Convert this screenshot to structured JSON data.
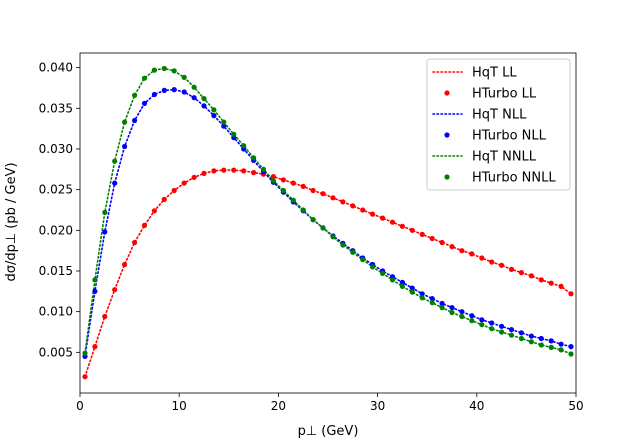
{
  "chart_data": {
    "type": "scatter",
    "xlabel": "p⊥ (GeV)",
    "ylabel": "dσ/dp⊥ (pb / GeV)",
    "xlim": [
      0,
      50
    ],
    "ylim": [
      0.0,
      0.0418
    ],
    "xticks": [
      0,
      10,
      20,
      30,
      40,
      50
    ],
    "xtick_labels": [
      "0",
      "10",
      "20",
      "30",
      "40",
      "50"
    ],
    "yticks": [
      0.005,
      0.01,
      0.015,
      0.02,
      0.025,
      0.03,
      0.035,
      0.04
    ],
    "ytick_labels": [
      "0.005",
      "0.010",
      "0.015",
      "0.020",
      "0.025",
      "0.030",
      "0.035",
      "0.040"
    ],
    "grid": false,
    "legend_position": "top-right",
    "series": [
      {
        "name": "HqT LL",
        "style": "dotted",
        "color": "#ff0000",
        "model": "LL"
      },
      {
        "name": "HTurbo LL",
        "style": "markers",
        "color": "#ff0000",
        "model": "LL"
      },
      {
        "name": "HqT NLL",
        "style": "dotted",
        "color": "#0000ff",
        "model": "NLL"
      },
      {
        "name": "HTurbo NLL",
        "style": "markers",
        "color": "#0000ff",
        "model": "NLL"
      },
      {
        "name": "HqT NNLL",
        "style": "dotted",
        "color": "#008000",
        "model": "NNLL"
      },
      {
        "name": "HTurbo NNLL",
        "style": "markers",
        "color": "#008000",
        "model": "NNLL"
      }
    ],
    "curves": {
      "LL": {
        "x": [
          0.5,
          1.5,
          2.5,
          3.5,
          4.5,
          5.5,
          6.5,
          7.5,
          8.5,
          9.5,
          10.5,
          11.5,
          12.5,
          13.5,
          14.5,
          15.5,
          16.5,
          17.5,
          18.5,
          19.5,
          20.5,
          21.5,
          22.5,
          23.5,
          24.5,
          25.5,
          26.5,
          27.5,
          28.5,
          29.5,
          30.5,
          31.5,
          32.5,
          33.5,
          34.5,
          35.5,
          36.5,
          37.5,
          38.5,
          39.5,
          40.5,
          41.5,
          42.5,
          43.5,
          44.5,
          45.5,
          46.5,
          47.5,
          48.5,
          49.5
        ],
        "y": [
          0.002,
          0.0057,
          0.0094,
          0.0127,
          0.0158,
          0.0185,
          0.0206,
          0.0224,
          0.0238,
          0.0249,
          0.0258,
          0.0265,
          0.027,
          0.0273,
          0.0274,
          0.0274,
          0.0273,
          0.0271,
          0.0269,
          0.0266,
          0.0262,
          0.0258,
          0.0254,
          0.0249,
          0.0245,
          0.024,
          0.0235,
          0.023,
          0.0225,
          0.022,
          0.0215,
          0.021,
          0.0205,
          0.02,
          0.0195,
          0.019,
          0.0185,
          0.018,
          0.0175,
          0.0171,
          0.0166,
          0.0161,
          0.0157,
          0.0152,
          0.0148,
          0.0144,
          0.0139,
          0.0135,
          0.0131,
          0.0122
        ]
      },
      "NLL": {
        "x": [
          0.5,
          1.5,
          2.5,
          3.5,
          4.5,
          5.5,
          6.5,
          7.5,
          8.5,
          9.5,
          10.5,
          11.5,
          12.5,
          13.5,
          14.5,
          15.5,
          16.5,
          17.5,
          18.5,
          19.5,
          20.5,
          21.5,
          22.5,
          23.5,
          24.5,
          25.5,
          26.5,
          27.5,
          28.5,
          29.5,
          30.5,
          31.5,
          32.5,
          33.5,
          34.5,
          35.5,
          36.5,
          37.5,
          38.5,
          39.5,
          40.5,
          41.5,
          42.5,
          43.5,
          44.5,
          45.5,
          46.5,
          47.5,
          48.5,
          49.5
        ],
        "y": [
          0.0045,
          0.0125,
          0.0198,
          0.0258,
          0.0303,
          0.0335,
          0.0356,
          0.0367,
          0.0372,
          0.0373,
          0.037,
          0.0363,
          0.0353,
          0.0341,
          0.0328,
          0.0314,
          0.03,
          0.0286,
          0.0272,
          0.0259,
          0.0247,
          0.0235,
          0.0224,
          0.0213,
          0.0203,
          0.0193,
          0.0184,
          0.0175,
          0.0166,
          0.0158,
          0.015,
          0.0143,
          0.0136,
          0.0129,
          0.0122,
          0.0116,
          0.011,
          0.0105,
          0.01,
          0.0095,
          0.009,
          0.0086,
          0.0082,
          0.0078,
          0.0074,
          0.007,
          0.0067,
          0.0064,
          0.006,
          0.0057
        ]
      },
      "NNLL": {
        "x": [
          0.5,
          1.5,
          2.5,
          3.5,
          4.5,
          5.5,
          6.5,
          7.5,
          8.5,
          9.5,
          10.5,
          11.5,
          12.5,
          13.5,
          14.5,
          15.5,
          16.5,
          17.5,
          18.5,
          19.5,
          20.5,
          21.5,
          22.5,
          23.5,
          24.5,
          25.5,
          26.5,
          27.5,
          28.5,
          29.5,
          30.5,
          31.5,
          32.5,
          33.5,
          34.5,
          35.5,
          36.5,
          37.5,
          38.5,
          39.5,
          40.5,
          41.5,
          42.5,
          43.5,
          44.5,
          45.5,
          46.5,
          47.5,
          48.5,
          49.5
        ],
        "y": [
          0.0049,
          0.0139,
          0.0222,
          0.0285,
          0.0333,
          0.0366,
          0.0387,
          0.0397,
          0.0399,
          0.0396,
          0.0388,
          0.0376,
          0.0362,
          0.0348,
          0.0333,
          0.0318,
          0.0304,
          0.0289,
          0.0275,
          0.0261,
          0.0249,
          0.0237,
          0.0225,
          0.0213,
          0.0203,
          0.0192,
          0.0182,
          0.0173,
          0.0164,
          0.0155,
          0.0147,
          0.0139,
          0.0131,
          0.0124,
          0.0117,
          0.0111,
          0.0105,
          0.0099,
          0.0094,
          0.0089,
          0.0084,
          0.0079,
          0.0075,
          0.0071,
          0.0067,
          0.0063,
          0.0059,
          0.0056,
          0.0053,
          0.0048
        ]
      }
    }
  }
}
